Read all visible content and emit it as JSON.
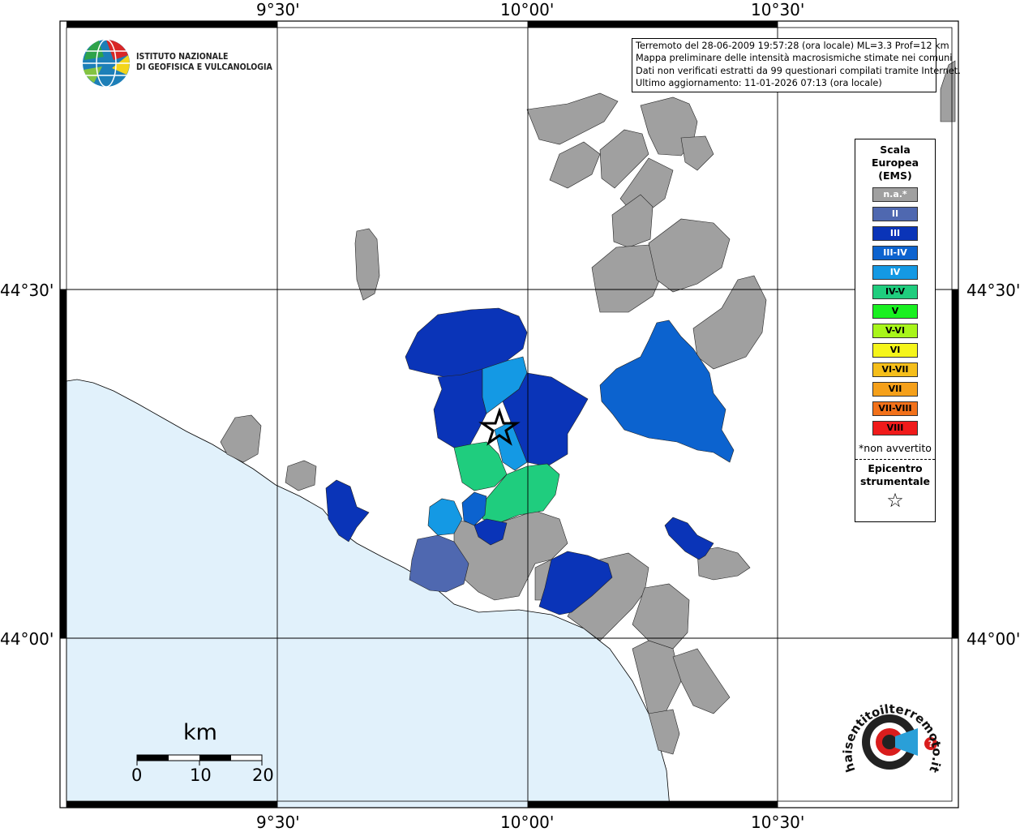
{
  "coords": {
    "top": [
      "9°30'",
      "10°00'",
      "10°30'"
    ],
    "bottom": [
      "9°30'",
      "10°00'",
      "10°30'"
    ],
    "left": [
      "44°30'",
      "44°00'"
    ],
    "right": [
      "44°30'",
      "44°00'"
    ]
  },
  "info_box": {
    "line1": "Terremoto del 28-06-2009 19:57:28 (ora locale) ML=3.3 Prof=12 km",
    "line2": "Mappa preliminare delle intensità macrosismiche stimate nei comuni",
    "line3": "Dati non verificati estratti da 99 questionari compilati tramite Internet.",
    "line4": "Ultimo aggiornamento: 11-01-2026 07:13 (ora locale)"
  },
  "institute": {
    "line1": "ISTITUTO NAZIONALE",
    "line2": "DI GEOFISICA E VULCANOLOGIA"
  },
  "legend": {
    "title1": "Scala",
    "title2": "Europea",
    "title3": "(EMS)",
    "items": [
      {
        "label": "n.a.*",
        "color": "#a0a0a0",
        "text_color": "#ffffff"
      },
      {
        "label": "II",
        "color": "#4f68b0",
        "text_color": "#ffffff"
      },
      {
        "label": "III",
        "color": "#0a34b8",
        "text_color": "#ffffff"
      },
      {
        "label": "III-IV",
        "color": "#0c63cf",
        "text_color": "#ffffff"
      },
      {
        "label": "IV",
        "color": "#1499e4",
        "text_color": "#ffffff"
      },
      {
        "label": "IV-V",
        "color": "#1fcd7e",
        "text_color": "#000000"
      },
      {
        "label": "V",
        "color": "#19f021",
        "text_color": "#000000"
      },
      {
        "label": "V-VI",
        "color": "#a8f51a",
        "text_color": "#000000"
      },
      {
        "label": "VI",
        "color": "#f5f51a",
        "text_color": "#000000"
      },
      {
        "label": "VI-VII",
        "color": "#f5be1a",
        "text_color": "#000000"
      },
      {
        "label": "VII",
        "color": "#f5a01a",
        "text_color": "#000000"
      },
      {
        "label": "VII-VIII",
        "color": "#f2711a",
        "text_color": "#000000"
      },
      {
        "label": "VIII",
        "color": "#f01a1a",
        "text_color": "#000000"
      }
    ],
    "na_note": "*non avvertito",
    "epi1": "Epicentro",
    "epi2": "strumentale"
  },
  "scale_bar": {
    "unit": "km",
    "ticks": [
      "0",
      "10",
      "20"
    ]
  },
  "haisentito_logo": {
    "text": "haisentitoilterremoto.it",
    "url": "www."
  }
}
